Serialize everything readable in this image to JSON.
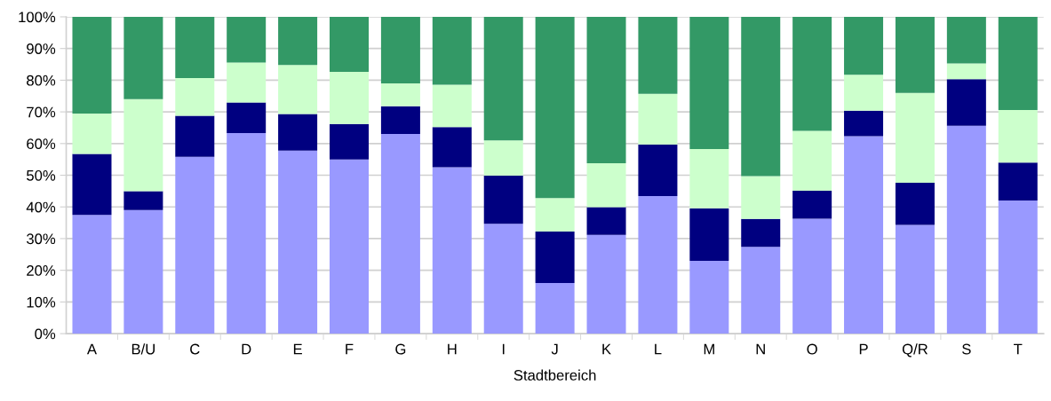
{
  "chart_data": {
    "type": "bar",
    "stacked": true,
    "xlabel": "Stadtbereich",
    "categories": [
      "A",
      "B/U",
      "C",
      "D",
      "E",
      "F",
      "G",
      "H",
      "I",
      "J",
      "K",
      "L",
      "M",
      "N",
      "O",
      "P",
      "Q/R",
      "S",
      "T"
    ],
    "series": [
      {
        "color": "#9999ff",
        "values": [
          37.5,
          39,
          55.8,
          63.3,
          57.8,
          55,
          63,
          52.5,
          34.7,
          16,
          31.2,
          43.4,
          23,
          27.4,
          36.3,
          62.3,
          34.3,
          65.6,
          42
        ]
      },
      {
        "color": "#000080",
        "values": [
          19.2,
          6,
          13,
          9.7,
          11.5,
          11.2,
          8.8,
          12.7,
          15.2,
          16.2,
          8.7,
          16.3,
          16.5,
          8.8,
          8.8,
          8.1,
          13.3,
          14.7,
          12
        ]
      },
      {
        "color": "#ccffcc",
        "values": [
          12.8,
          29,
          11.9,
          12.6,
          15.5,
          16.4,
          7.2,
          13.4,
          11.1,
          10.6,
          13.9,
          16,
          18.8,
          13.5,
          18.9,
          11.3,
          28.4,
          5,
          16.6
        ]
      },
      {
        "color": "#339966",
        "values": [
          30.5,
          26,
          19.3,
          14.4,
          15.2,
          17.4,
          21,
          21.4,
          39,
          57.2,
          46.2,
          24.3,
          41.7,
          50.3,
          36,
          18.3,
          24,
          14.7,
          29.4
        ]
      }
    ],
    "ylim": [
      0,
      100
    ],
    "yticks": [
      {
        "value": 0,
        "label": "0%"
      },
      {
        "value": 10,
        "label": "10%"
      },
      {
        "value": 20,
        "label": "20%"
      },
      {
        "value": 30,
        "label": "30%"
      },
      {
        "value": 40,
        "label": "40%"
      },
      {
        "value": 50,
        "label": "50%"
      },
      {
        "value": 60,
        "label": "60%"
      },
      {
        "value": 70,
        "label": "70%"
      },
      {
        "value": 80,
        "label": "80%"
      },
      {
        "value": 90,
        "label": "90%"
      },
      {
        "value": 100,
        "label": "100%"
      }
    ],
    "grid": "y",
    "legend": false
  }
}
